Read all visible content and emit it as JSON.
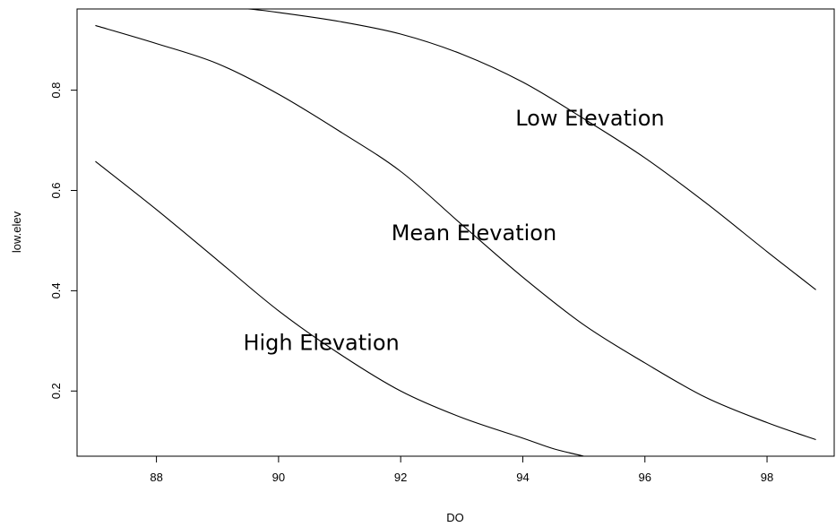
{
  "chart_data": {
    "type": "line",
    "xlabel": "DO",
    "ylabel": "low.elev",
    "xlim": [
      86.7,
      99.1
    ],
    "ylim": [
      0.07,
      0.962
    ],
    "x_ticks": [
      88,
      90,
      92,
      94,
      96,
      98
    ],
    "y_ticks": [
      0.2,
      0.4,
      0.6,
      0.8
    ],
    "x_tick_labels": [
      "88",
      "90",
      "92",
      "94",
      "96",
      "98"
    ],
    "y_tick_labels": [
      "0.2",
      "0.4",
      "0.6",
      "0.8"
    ],
    "grid": false,
    "series": [
      {
        "name": "Low Elevation",
        "x": [
          87.0,
          88.0,
          89.0,
          89.5,
          90.0,
          91.0,
          92.0,
          93.0,
          94.0,
          95.0,
          96.0,
          97.0,
          98.0,
          98.8
        ],
        "y": [
          0.985,
          0.977,
          0.965,
          0.962,
          0.955,
          0.937,
          0.912,
          0.872,
          0.816,
          0.743,
          0.665,
          0.575,
          0.478,
          0.402
        ]
      },
      {
        "name": "Mean Elevation",
        "x": [
          87.0,
          88.0,
          89.0,
          90.0,
          91.0,
          92.0,
          93.0,
          94.0,
          95.0,
          96.0,
          97.0,
          98.0,
          98.8
        ],
        "y": [
          0.929,
          0.893,
          0.853,
          0.792,
          0.718,
          0.638,
          0.532,
          0.427,
          0.332,
          0.256,
          0.187,
          0.137,
          0.103
        ]
      },
      {
        "name": "High Elevation",
        "x": [
          87.0,
          88.0,
          89.0,
          90.0,
          91.0,
          92.0,
          93.0,
          94.0,
          94.5,
          95.0
        ],
        "y": [
          0.658,
          0.562,
          0.461,
          0.36,
          0.274,
          0.2,
          0.147,
          0.106,
          0.085,
          0.07
        ]
      }
    ],
    "annotations": [
      {
        "text": "Low Elevation",
        "x": 95.1,
        "y": 0.744
      },
      {
        "text": "Mean Elevation",
        "x": 93.2,
        "y": 0.515
      },
      {
        "text": "High Elevation",
        "x": 90.7,
        "y": 0.296
      }
    ]
  }
}
